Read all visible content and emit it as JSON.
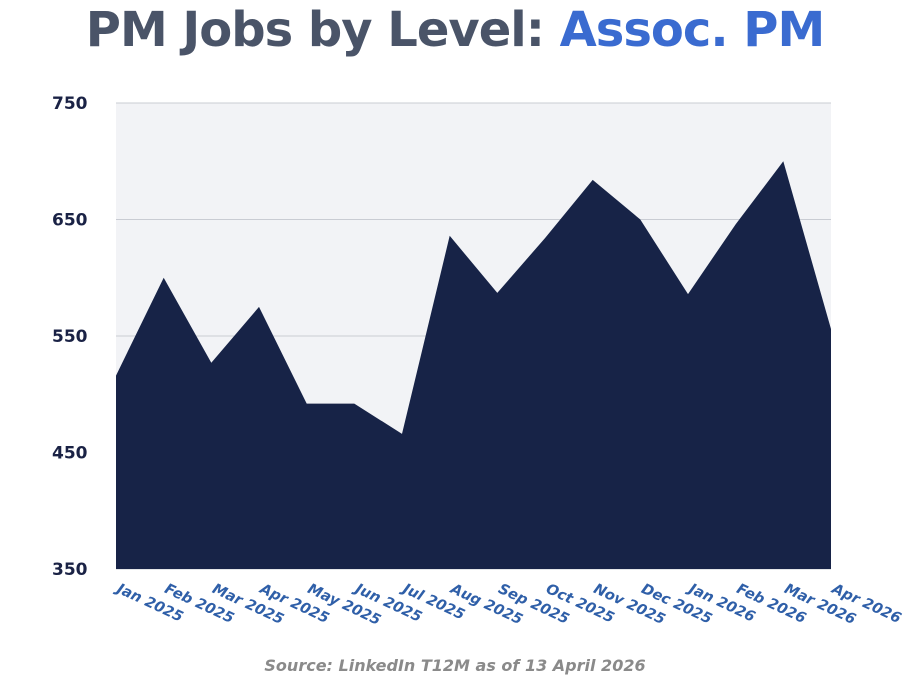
{
  "title": {
    "prefix": "PM Jobs by Level: ",
    "highlight": "Assoc. PM"
  },
  "source": "Source: LinkedIn T12M as of 13 April 2026",
  "colors": {
    "title": "#4a5468",
    "highlight": "#3a6bd0",
    "area": "#172347",
    "plot_bg": "#f2f3f6",
    "grid": "#c9ccd3",
    "ytick": "#1a2245",
    "xtick": "#2f5fa8",
    "source": "#8a8a8a"
  },
  "chart_data": {
    "type": "area",
    "title": "PM Jobs by Level: Assoc. PM",
    "categories": [
      "Jan 2025",
      "Feb 2025",
      "Mar 2025",
      "Apr 2025",
      "May 2025",
      "Jun 2025",
      "Jul 2025",
      "Aug 2025",
      "Sep 2025",
      "Oct 2025",
      "Nov 2025",
      "Dec 2025",
      "Jan 2026",
      "Feb 2026",
      "Mar 2026",
      "Apr 2026"
    ],
    "values": [
      516,
      600,
      527,
      575,
      492,
      492,
      466,
      636,
      587,
      634,
      684,
      650,
      586,
      646,
      700,
      556
    ],
    "ylim": [
      350,
      750
    ],
    "yticks": [
      750,
      650,
      550,
      450,
      350
    ],
    "grid": true,
    "xlabel": "",
    "ylabel": ""
  }
}
